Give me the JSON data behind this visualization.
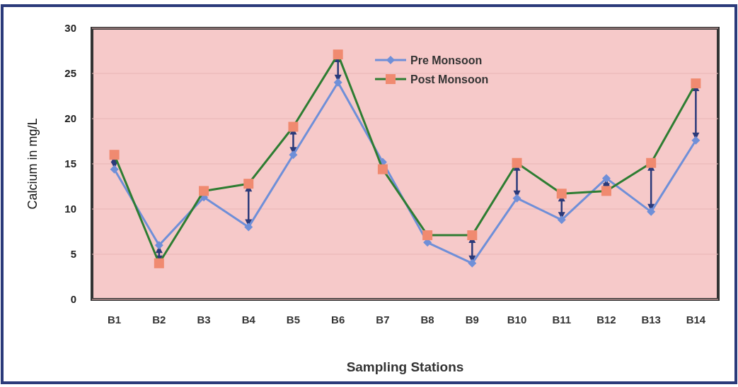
{
  "chart_data": {
    "type": "line",
    "xlabel": "Sampling Stations",
    "ylabel": "Calcium in mg/L",
    "categories": [
      "B1",
      "B2",
      "B3",
      "B4",
      "B5",
      "B6",
      "B7",
      "B8",
      "B9",
      "B10",
      "B11",
      "B12",
      "B13",
      "B14"
    ],
    "series": [
      {
        "name": "Pre Monsoon",
        "color": "#6f8fd8",
        "marker": "diamond",
        "values": [
          14.4,
          6,
          11.3,
          8,
          16,
          24,
          15.2,
          6.3,
          4,
          11.2,
          8.8,
          13.4,
          9.7,
          17.6
        ]
      },
      {
        "name": "Post Monsoon",
        "color": "#2e7d32",
        "marker": "square",
        "colors": [
          "#f08a70",
          "#f08a70",
          "#f08a70",
          "#f08a70",
          "#f08a70",
          "#f08a70",
          "#f08a70",
          "#f08a70",
          "#f08a70",
          "#f08a70",
          "#f08a70",
          "#f08a70",
          "#f08a70",
          "#f08a70"
        ],
        "values": [
          16,
          4,
          12,
          12.8,
          19.1,
          27.1,
          14.4,
          7.1,
          7.1,
          15.1,
          11.7,
          12,
          15.1,
          23.9
        ]
      }
    ],
    "ylim": [
      0,
      30
    ],
    "yticks": [
      0,
      5,
      10,
      15,
      20,
      25,
      30
    ],
    "grid": "y",
    "legend": "top"
  }
}
